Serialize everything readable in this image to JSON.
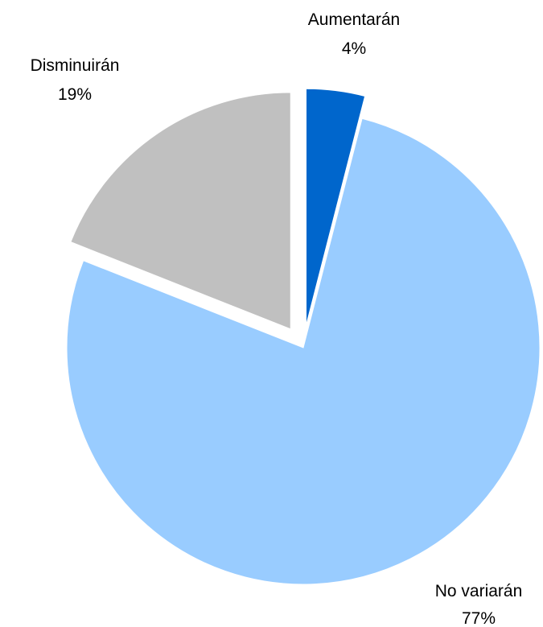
{
  "chart_data": {
    "type": "pie",
    "title": "",
    "start_angle_deg": 0,
    "direction": "clockwise",
    "slices": [
      {
        "name": "Aumentarán",
        "value": 4,
        "label": "Aumentarán",
        "value_label": "4%",
        "color": "#0066CC",
        "exploded": true
      },
      {
        "name": "No variarán",
        "value": 77,
        "label": "No variarán",
        "value_label": "77%",
        "color": "#99CCFF",
        "exploded": false
      },
      {
        "name": "Disminuirán",
        "value": 19,
        "label": "Disminuirán",
        "value_label": "19%",
        "color": "#C0C0C0",
        "exploded": true
      }
    ]
  }
}
